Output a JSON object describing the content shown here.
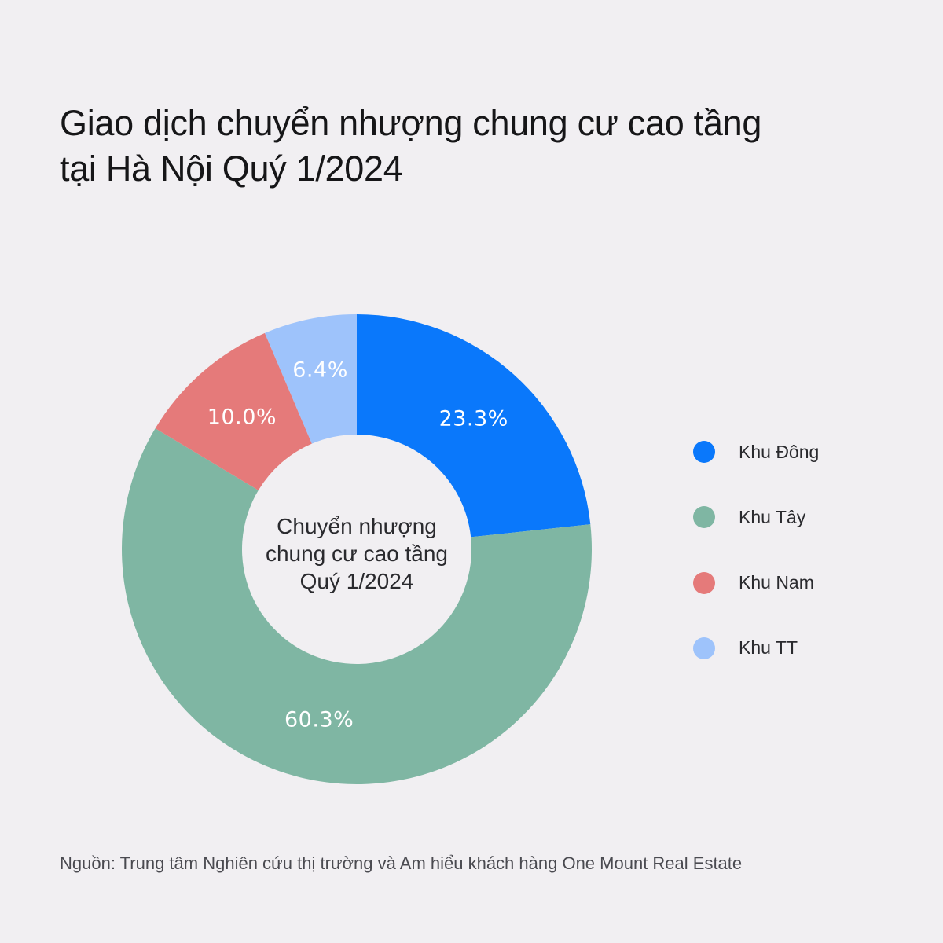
{
  "title": {
    "line1": "Giao dịch chuyển nhượng chung cư cao tầng",
    "line2": "tại Hà Nội Quý 1/2024"
  },
  "center_label": {
    "line1": "Chuyển nhượng",
    "line2": "chung cư cao tầng",
    "line3": "Quý 1/2024"
  },
  "legend": [
    {
      "label": "Khu Đông",
      "color": "#0a78fb"
    },
    {
      "label": "Khu Tây",
      "color": "#7fb6a3"
    },
    {
      "label": "Khu Nam",
      "color": "#e57a7a"
    },
    {
      "label": "Khu TT",
      "color": "#9ec3fb"
    }
  ],
  "slice_labels": [
    "23.3%",
    "60.3%",
    "10.0%",
    "6.4%"
  ],
  "source": "Nguồn: Trung tâm Nghiên cứu thị trường và Am hiểu khách hàng One Mount Real Estate",
  "chart_data": {
    "type": "pie",
    "variant": "donut",
    "title": "Giao dịch chuyển nhượng chung cư cao tầng tại Hà Nội Quý 1/2024",
    "center_text": "Chuyển nhượng chung cư cao tầng Quý 1/2024",
    "categories": [
      "Khu Đông",
      "Khu Tây",
      "Khu Nam",
      "Khu TT"
    ],
    "values": [
      23.3,
      60.3,
      10.0,
      6.4
    ],
    "unit": "%",
    "colors": [
      "#0a78fb",
      "#7fb6a3",
      "#e57a7a",
      "#9ec3fb"
    ],
    "start_angle": "12 o'clock",
    "direction": "clockwise",
    "legend_position": "right",
    "data_labels": true
  }
}
